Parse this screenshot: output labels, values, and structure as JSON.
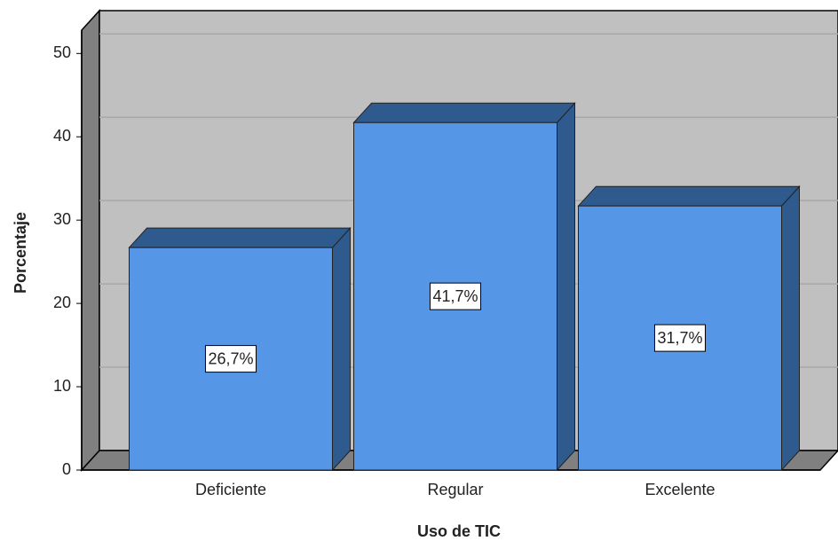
{
  "chart_data": {
    "type": "bar3d",
    "x_label": "Uso de TIC",
    "y_label": "Porcentaje",
    "categories": [
      "Deficiente",
      "Regular",
      "Excelente"
    ],
    "values": [
      26.7,
      41.7,
      31.7
    ],
    "value_labels": [
      "26,7%",
      "41,7%",
      "31,7%"
    ],
    "color": "#5596e6",
    "ylim": [
      0,
      52.8
    ],
    "yticks": [
      0,
      10,
      20,
      30,
      40,
      50
    ],
    "grid": true
  }
}
